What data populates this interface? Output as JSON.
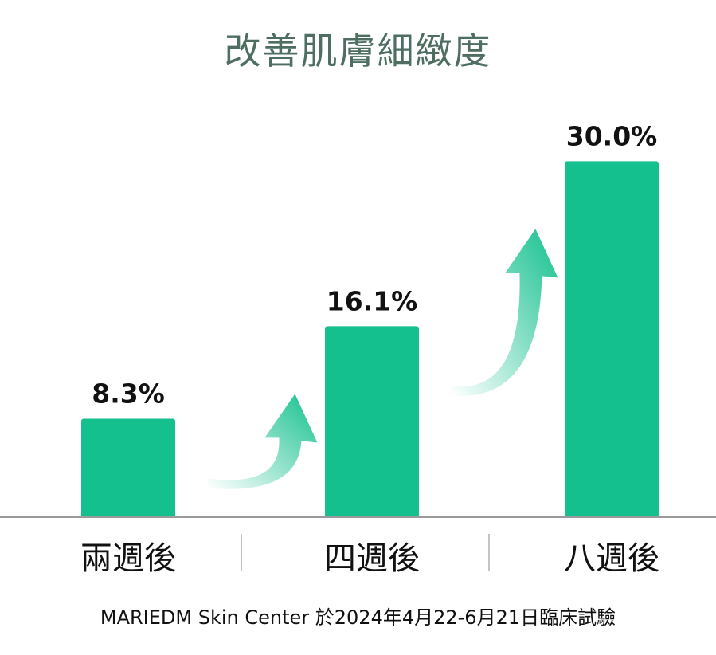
{
  "chart_data": {
    "type": "bar",
    "title": "改善肌膚細緻度",
    "categories": [
      "兩週後",
      "四週後",
      "八週後"
    ],
    "values": [
      8.3,
      16.1,
      30.0
    ],
    "value_labels": [
      "8.3%",
      "16.1%",
      "30.0%"
    ],
    "unit": "%",
    "xlabel": "",
    "ylabel": "",
    "ylim": [
      0,
      35
    ],
    "grid": false,
    "legend": "none"
  },
  "footnote": "MARIEDM Skin Center 於2024年4月22-6月21日臨床試驗",
  "colors": {
    "bar": "#14c08e",
    "title": "#4e6e62",
    "arrow": "#14c08e",
    "baseline": "#9a9a9a"
  },
  "icons": [
    "curved-up-arrow-icon",
    "curved-up-arrow-icon"
  ]
}
